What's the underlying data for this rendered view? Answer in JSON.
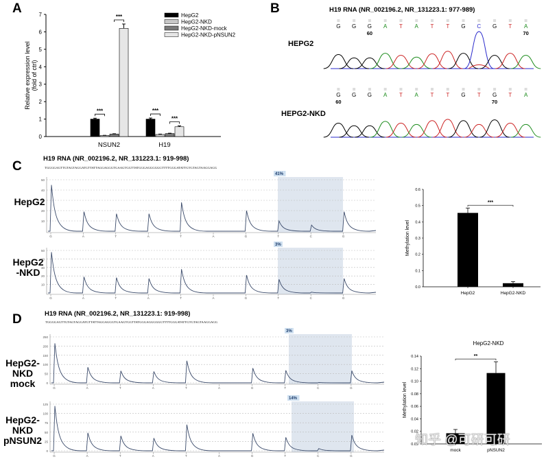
{
  "panels": {
    "A": {
      "letter": "A"
    },
    "B": {
      "letter": "B",
      "title": "H19 RNA (NR_002196.2, NR_131223.1: 977-989)"
    },
    "C": {
      "letter": "C",
      "title": "H19 RNA (NR_002196.2, NR_131223.1: 919-998)"
    },
    "D": {
      "letter": "D",
      "title": "H19 RNA (NR_002196.2, NR_131223.1: 919-998)"
    }
  },
  "sequence": "TGGGGAGTTGTAGTAGGATGTTATTAGGAGGGTGAAGTGGTTATGGGAGGGGGGTTTTGGGATATTGTGTAGTAAGGAGG",
  "chart_data": [
    {
      "id": "A",
      "type": "bar",
      "title": "",
      "ylabel": "Relative expression level",
      "ylabel2": "(fold of ctrl)",
      "xlabel": "",
      "ylim": [
        0,
        7
      ],
      "yticks": [
        "0",
        "1",
        "2",
        "3",
        "4",
        "5",
        "6",
        "7"
      ],
      "categories": [
        "NSUN2",
        "H19"
      ],
      "series": [
        {
          "name": "HepG2",
          "color": "#000000",
          "values": [
            1.0,
            1.0
          ],
          "errors": [
            0.05,
            0.06
          ]
        },
        {
          "name": "HepG2-NKD",
          "color": "#c8c8c8",
          "values": [
            0.06,
            0.12
          ],
          "errors": [
            0.01,
            0.02
          ]
        },
        {
          "name": "HepG2-NKD-mock",
          "color": "#7a7a7a",
          "values": [
            0.14,
            0.17
          ],
          "errors": [
            0.02,
            0.02
          ]
        },
        {
          "name": "HepG2-NKD-pNSUN2",
          "color": "#e6e6e6",
          "values": [
            6.2,
            0.56
          ],
          "errors": [
            0.25,
            0.05
          ]
        }
      ],
      "significance": [
        {
          "category": "NSUN2",
          "between": [
            "HepG2",
            "HepG2-NKD"
          ],
          "label": "***"
        },
        {
          "category": "NSUN2",
          "between": [
            "HepG2-NKD-mock",
            "HepG2-NKD-pNSUN2"
          ],
          "label": "***"
        },
        {
          "category": "H19",
          "between": [
            "HepG2",
            "HepG2-NKD"
          ],
          "label": "***"
        },
        {
          "category": "H19",
          "between": [
            "HepG2-NKD-mock",
            "HepG2-NKD-pNSUN2"
          ],
          "label": "***"
        }
      ],
      "legend": "top-right"
    },
    {
      "id": "B",
      "type": "line",
      "title": "H19 RNA (NR_002196.2, NR_131223.1: 977-989)",
      "tracks": [
        {
          "label": "HEPG2",
          "bases": [
            "G",
            "G",
            "G",
            "A",
            "T",
            "A",
            "T",
            "T",
            "G",
            "C",
            "G",
            "T",
            "A"
          ],
          "position_labels": {
            "2": "60",
            "12": "70"
          },
          "peak_heights": [
            0.55,
            0.42,
            0.42,
            0.6,
            0.52,
            0.45,
            0.58,
            0.68,
            0.6,
            1.45,
            0.52,
            0.6,
            0.52
          ],
          "secondary": {
            "9": 0.2
          }
        },
        {
          "label": "HEPG2-NKD",
          "bases": [
            "G",
            "G",
            "G",
            "A",
            "T",
            "A",
            "T",
            "T",
            "G",
            "T",
            "G",
            "T",
            "A"
          ],
          "position_labels": {
            "0": "60",
            "10": "70"
          },
          "peak_heights": [
            0.55,
            0.45,
            0.45,
            0.62,
            0.55,
            0.5,
            0.65,
            0.7,
            0.65,
            0.5,
            0.68,
            0.55,
            0.5
          ],
          "secondary": {}
        }
      ],
      "base_colors": {
        "G": "#000000",
        "A": "#1a8a1a",
        "T": "#cc2222",
        "C": "#2a2acc"
      }
    },
    {
      "id": "C-pyro",
      "type": "line",
      "tracks": [
        {
          "label": "HepG2",
          "ylim": [
            0,
            50
          ],
          "yticks": [
            "10",
            "20",
            "30",
            "40",
            "50"
          ],
          "bases": [
            "G",
            "A",
            "T",
            "A",
            "T",
            "A",
            "G",
            "T",
            "C",
            "G"
          ],
          "peaks": [
            45,
            19,
            17,
            17,
            28,
            0,
            20,
            10,
            6,
            19
          ],
          "highlight_label": "41%"
        },
        {
          "label": "HepG2\n-NKD",
          "ylim": [
            0,
            50
          ],
          "yticks": [
            "10",
            "20",
            "30",
            "40",
            "50"
          ],
          "bases": [
            "G",
            "A",
            "T",
            "A",
            "T",
            "A",
            "G",
            "T",
            "C",
            "G"
          ],
          "peaks": [
            48,
            19,
            18,
            17,
            28,
            0,
            21,
            16,
            1,
            17
          ],
          "highlight_label": "3%"
        }
      ]
    },
    {
      "id": "C-bar",
      "type": "bar",
      "title": "",
      "ylabel": "Methylation level",
      "ylim": [
        0,
        0.6
      ],
      "yticks": [
        "0.0",
        "0.1",
        "0.2",
        "0.3",
        "0.4",
        "0.5",
        "0.6"
      ],
      "categories": [
        "HepG2",
        "HepG2-NKD"
      ],
      "values": [
        0.455,
        0.022
      ],
      "errors": [
        0.03,
        0.01
      ],
      "color": "#000000",
      "significance": [
        {
          "between": [
            "HepG2",
            "HepG2-NKD"
          ],
          "label": "***"
        }
      ]
    },
    {
      "id": "D-pyro",
      "type": "line",
      "tracks": [
        {
          "label": "HepG2-NKD\nmock",
          "ylim": [
            0,
            250
          ],
          "yticks": [
            "0",
            "50",
            "100",
            "150",
            "200",
            "250"
          ],
          "bases": [
            "G",
            "A",
            "T",
            "A",
            "T",
            "A",
            "G",
            "T",
            "C",
            "G"
          ],
          "peaks": [
            215,
            85,
            65,
            62,
            120,
            0,
            80,
            68,
            2,
            66
          ],
          "highlight_label": "3%"
        },
        {
          "label": "HepG2-NKD\npNSUN2",
          "ylim": [
            0,
            125
          ],
          "yticks": [
            "0",
            "25",
            "50",
            "75",
            "100",
            "125"
          ],
          "bases": [
            "G",
            "A",
            "T",
            "A",
            "T",
            "A",
            "G",
            "T",
            "C",
            "G"
          ],
          "peaks": [
            120,
            48,
            40,
            34,
            70,
            0,
            47,
            36,
            6,
            42
          ],
          "highlight_label": "14%"
        }
      ]
    },
    {
      "id": "D-bar",
      "type": "bar",
      "title": "HepG2-NKD",
      "ylabel": "Methylation level",
      "ylim": [
        0,
        0.14
      ],
      "yticks": [
        "0.00",
        "0.02",
        "0.04",
        "0.06",
        "0.08",
        "0.10",
        "0.12",
        "0.14"
      ],
      "categories": [
        "mock",
        "pNSUN2"
      ],
      "values": [
        0.017,
        0.113
      ],
      "errors": [
        0.006,
        0.018
      ],
      "color": "#000000",
      "significance": [
        {
          "between": [
            "mock",
            "pNSUN2"
          ],
          "label": "**"
        }
      ]
    }
  ],
  "watermark": "知乎 @可研可研"
}
